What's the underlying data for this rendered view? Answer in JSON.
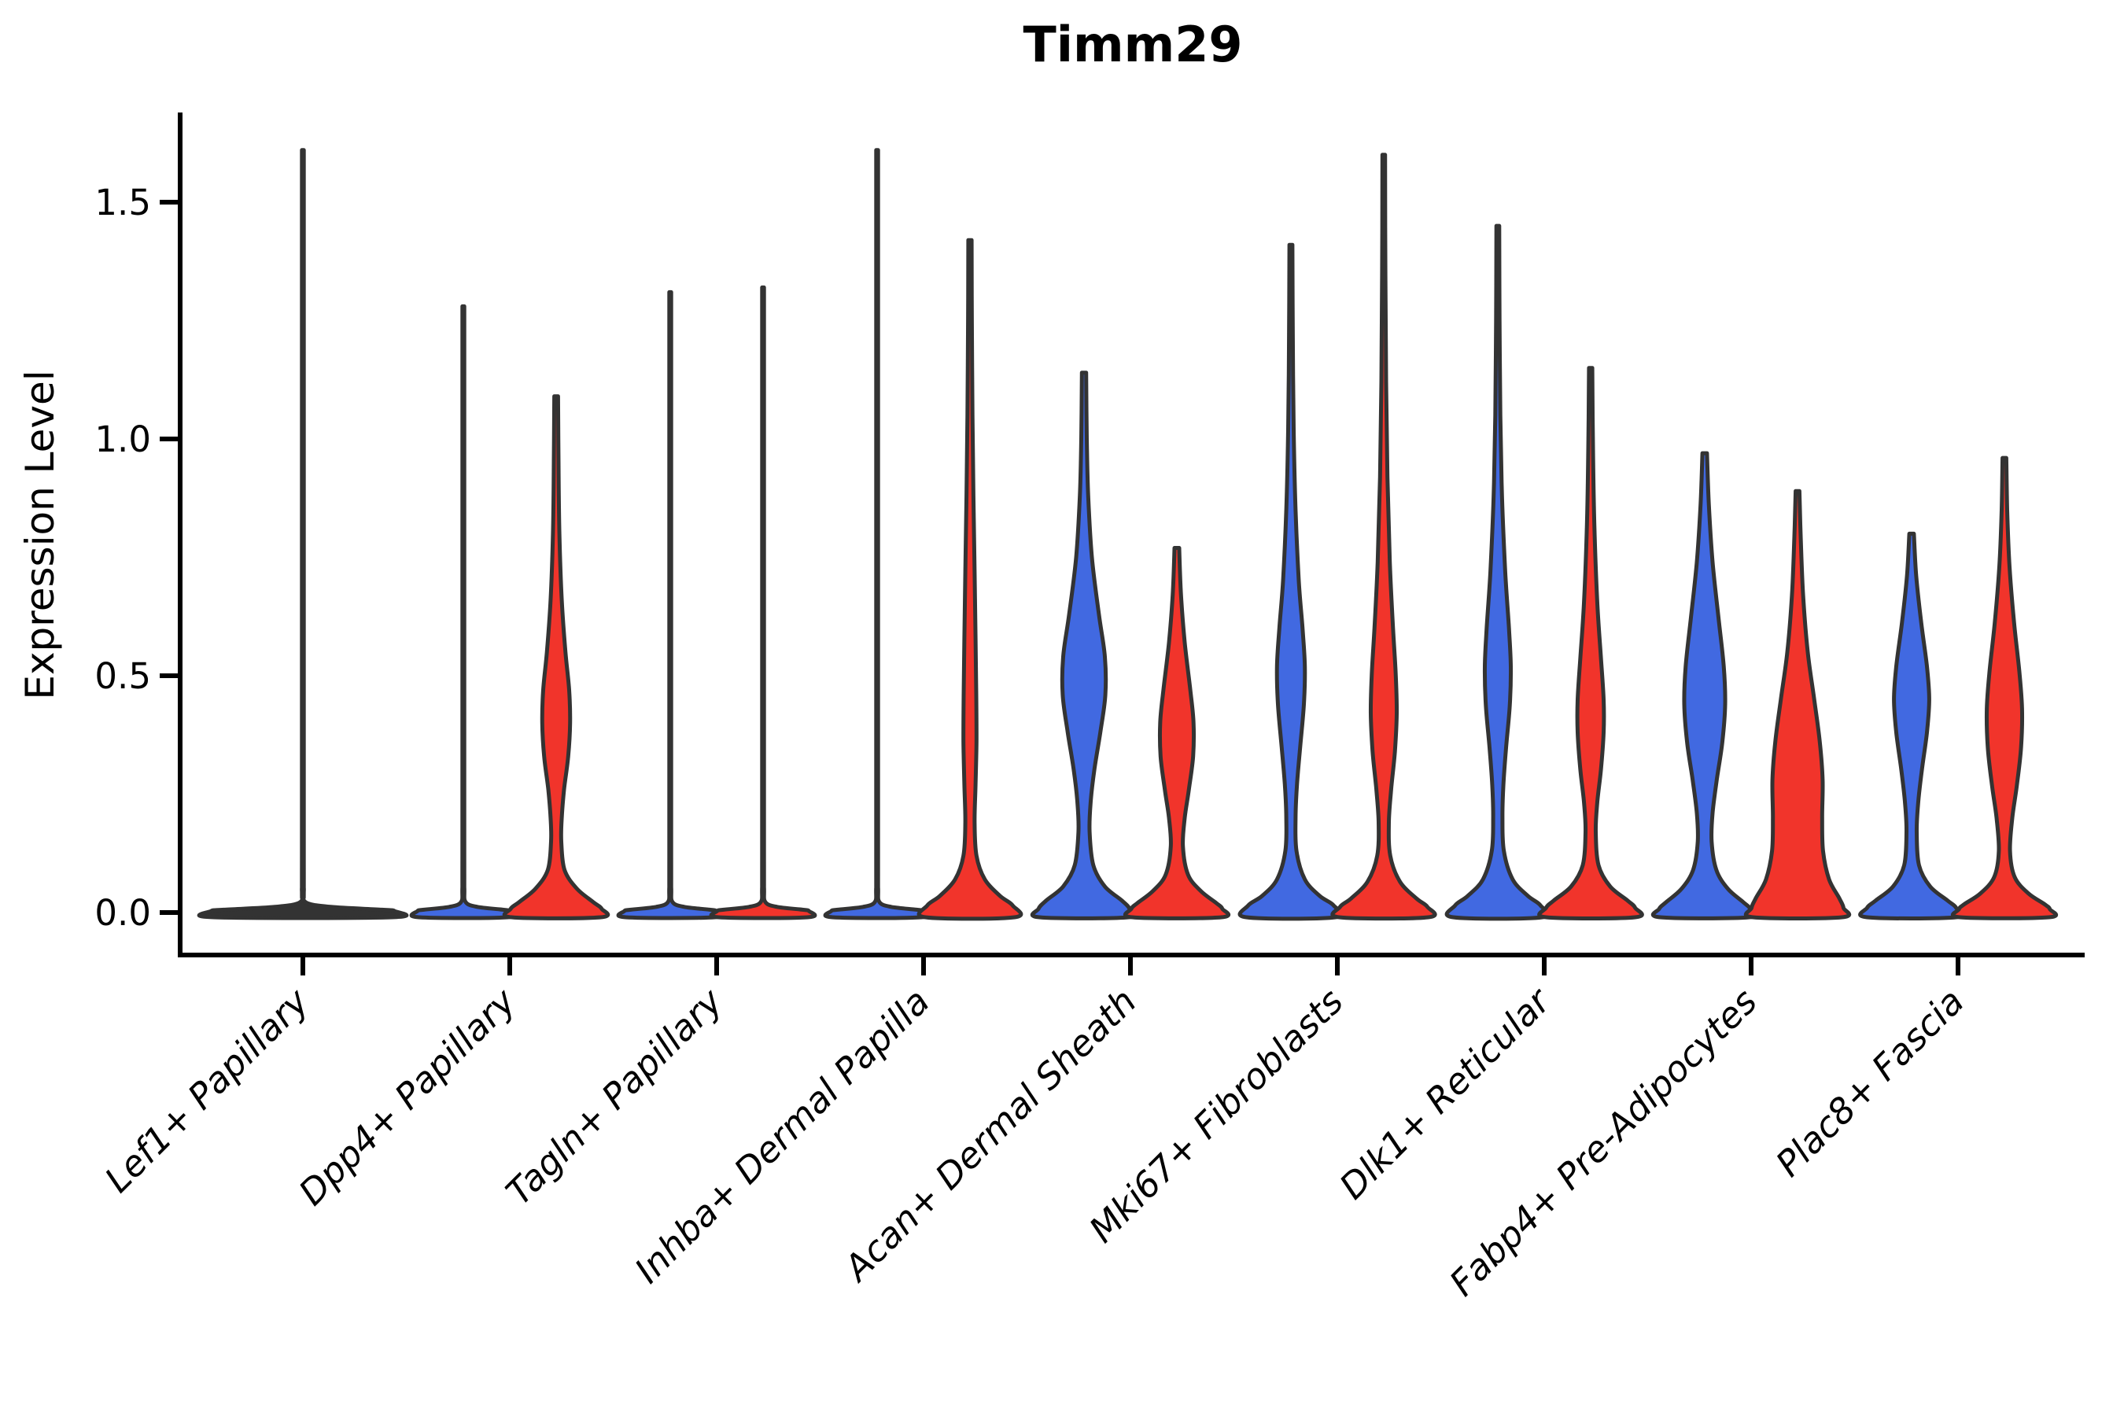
{
  "title": "Timm29",
  "y_axis": {
    "label": "Expression Level",
    "tick_labels": [
      "0.0",
      "0.5",
      "1.0",
      "1.5"
    ],
    "tick_values": [
      0.0,
      0.5,
      1.0,
      1.5
    ]
  },
  "x_axis": {
    "categories": [
      "Lef1+ Papillary",
      "Dpp4+ Papillary",
      "Tagln+ Papillary",
      "Inhba+ Dermal Papilla",
      "Acan+ Dermal Sheath",
      "Mki67+ Fibroblasts",
      "Dlk1+ Reticular",
      "Fabp4+ Pre-Adipocytes",
      "Plac8+ Fascia"
    ]
  },
  "colors": {
    "blue": "#4169E1",
    "red": "#F1342B",
    "dark": "#333333",
    "outline": "#333333",
    "axis": "#000000"
  },
  "chart_data": {
    "type": "violin",
    "title": "Timm29",
    "xlabel": "",
    "ylabel": "Expression Level",
    "ylim": [
      -0.05,
      1.69
    ],
    "grid": false,
    "legend": "none",
    "categories": [
      "Lef1+ Papillary",
      "Dpp4+ Papillary",
      "Tagln+ Papillary",
      "Inhba+ Dermal Papilla",
      "Acan+ Dermal Sheath",
      "Mki67+ Fibroblasts",
      "Dlk1+ Reticular",
      "Fabp4+ Pre-Adipocytes",
      "Plac8+ Fascia"
    ],
    "series": [
      {
        "name": "group-blue",
        "color_key": "blue",
        "max_expression": [
          1.61,
          1.28,
          1.31,
          1.61,
          1.14,
          1.41,
          1.45,
          0.97,
          0.8
        ]
      },
      {
        "name": "group-red",
        "color_key": "red",
        "max_expression": [
          null,
          1.09,
          1.32,
          1.42,
          0.77,
          1.6,
          1.15,
          0.89,
          0.96
        ]
      }
    ],
    "violins": [
      {
        "category_index": 0,
        "slot": "full",
        "color_key": "dark",
        "max_expression": 1.61,
        "profile": [
          [
            1.61,
            0.01
          ],
          [
            1.0,
            0.01
          ],
          [
            0.12,
            0.0105
          ],
          [
            0.05,
            0.011
          ],
          [
            0.022,
            0.03
          ],
          [
            0.012,
            0.3
          ],
          [
            0.006,
            0.85
          ],
          [
            0.003,
            0.99
          ],
          [
            -0.01,
            0.96
          ]
        ]
      },
      {
        "category_index": 1,
        "slot": "left",
        "color_key": "blue",
        "max_expression": 1.28,
        "profile": [
          [
            1.28,
            0.02
          ],
          [
            0.77,
            0.02
          ],
          [
            0.12,
            0.021
          ],
          [
            0.05,
            0.022
          ],
          [
            0.022,
            0.05
          ],
          [
            0.012,
            0.3
          ],
          [
            0.006,
            0.85
          ],
          [
            0.003,
            0.99
          ],
          [
            -0.01,
            0.96
          ]
        ]
      },
      {
        "category_index": 1,
        "slot": "right",
        "color_key": "red",
        "max_expression": 1.09,
        "profile": [
          [
            1.09,
            0.04
          ],
          [
            0.95,
            0.05
          ],
          [
            0.8,
            0.07
          ],
          [
            0.66,
            0.12
          ],
          [
            0.55,
            0.2
          ],
          [
            0.47,
            0.28
          ],
          [
            0.4,
            0.3
          ],
          [
            0.33,
            0.26
          ],
          [
            0.26,
            0.17
          ],
          [
            0.2,
            0.12
          ],
          [
            0.15,
            0.11
          ],
          [
            0.09,
            0.18
          ],
          [
            0.05,
            0.45
          ],
          [
            0.022,
            0.8
          ],
          [
            0.008,
            0.98
          ],
          [
            -0.01,
            0.96
          ]
        ]
      },
      {
        "category_index": 2,
        "slot": "left",
        "color_key": "blue",
        "max_expression": 1.31,
        "profile": [
          [
            1.31,
            0.02
          ],
          [
            0.79,
            0.02
          ],
          [
            0.12,
            0.021
          ],
          [
            0.05,
            0.022
          ],
          [
            0.022,
            0.05
          ],
          [
            0.012,
            0.3
          ],
          [
            0.006,
            0.85
          ],
          [
            0.003,
            0.99
          ],
          [
            -0.01,
            0.96
          ]
        ]
      },
      {
        "category_index": 2,
        "slot": "right",
        "color_key": "red",
        "max_expression": 1.32,
        "profile": [
          [
            1.32,
            0.02
          ],
          [
            0.79,
            0.02
          ],
          [
            0.12,
            0.021
          ],
          [
            0.05,
            0.022
          ],
          [
            0.022,
            0.05
          ],
          [
            0.012,
            0.3
          ],
          [
            0.006,
            0.85
          ],
          [
            0.003,
            0.99
          ],
          [
            -0.01,
            0.96
          ]
        ]
      },
      {
        "category_index": 3,
        "slot": "left",
        "color_key": "blue",
        "max_expression": 1.61,
        "profile": [
          [
            1.61,
            0.02
          ],
          [
            0.97,
            0.02
          ],
          [
            0.12,
            0.021
          ],
          [
            0.05,
            0.022
          ],
          [
            0.022,
            0.05
          ],
          [
            0.012,
            0.3
          ],
          [
            0.006,
            0.85
          ],
          [
            0.003,
            0.99
          ],
          [
            -0.01,
            0.96
          ]
        ]
      },
      {
        "category_index": 3,
        "slot": "right",
        "color_key": "red",
        "max_expression": 1.42,
        "profile": [
          [
            1.42,
            0.035
          ],
          [
            1.25,
            0.04
          ],
          [
            1.05,
            0.055
          ],
          [
            0.88,
            0.075
          ],
          [
            0.72,
            0.1
          ],
          [
            0.58,
            0.12
          ],
          [
            0.46,
            0.135
          ],
          [
            0.36,
            0.14
          ],
          [
            0.27,
            0.12
          ],
          [
            0.19,
            0.1
          ],
          [
            0.12,
            0.14
          ],
          [
            0.07,
            0.32
          ],
          [
            0.035,
            0.65
          ],
          [
            0.015,
            0.92
          ],
          [
            -0.01,
            0.96
          ]
        ]
      },
      {
        "category_index": 4,
        "slot": "left",
        "color_key": "blue",
        "max_expression": 1.14,
        "profile": [
          [
            1.14,
            0.045
          ],
          [
            1.0,
            0.06
          ],
          [
            0.88,
            0.09
          ],
          [
            0.75,
            0.17
          ],
          [
            0.63,
            0.32
          ],
          [
            0.54,
            0.45
          ],
          [
            0.46,
            0.46
          ],
          [
            0.38,
            0.35
          ],
          [
            0.3,
            0.22
          ],
          [
            0.23,
            0.14
          ],
          [
            0.17,
            0.12
          ],
          [
            0.1,
            0.2
          ],
          [
            0.055,
            0.45
          ],
          [
            0.025,
            0.82
          ],
          [
            0.008,
            0.98
          ],
          [
            -0.01,
            0.96
          ]
        ]
      },
      {
        "category_index": 4,
        "slot": "right",
        "color_key": "red",
        "max_expression": 0.77,
        "profile": [
          [
            0.77,
            0.05
          ],
          [
            0.67,
            0.09
          ],
          [
            0.57,
            0.17
          ],
          [
            0.47,
            0.29
          ],
          [
            0.4,
            0.36
          ],
          [
            0.33,
            0.35
          ],
          [
            0.26,
            0.26
          ],
          [
            0.2,
            0.17
          ],
          [
            0.14,
            0.13
          ],
          [
            0.08,
            0.24
          ],
          [
            0.045,
            0.52
          ],
          [
            0.02,
            0.85
          ],
          [
            0.008,
            0.98
          ],
          [
            -0.01,
            0.96
          ]
        ]
      },
      {
        "category_index": 5,
        "slot": "left",
        "color_key": "blue",
        "max_expression": 1.41,
        "profile": [
          [
            1.41,
            0.032
          ],
          [
            1.22,
            0.04
          ],
          [
            1.02,
            0.06
          ],
          [
            0.85,
            0.1
          ],
          [
            0.7,
            0.17
          ],
          [
            0.6,
            0.25
          ],
          [
            0.52,
            0.3
          ],
          [
            0.44,
            0.28
          ],
          [
            0.35,
            0.2
          ],
          [
            0.27,
            0.13
          ],
          [
            0.2,
            0.1
          ],
          [
            0.13,
            0.12
          ],
          [
            0.07,
            0.3
          ],
          [
            0.035,
            0.62
          ],
          [
            0.015,
            0.92
          ],
          [
            -0.01,
            0.96
          ]
        ]
      },
      {
        "category_index": 5,
        "slot": "right",
        "color_key": "red",
        "max_expression": 1.6,
        "profile": [
          [
            1.6,
            0.028
          ],
          [
            1.35,
            0.035
          ],
          [
            1.12,
            0.05
          ],
          [
            0.92,
            0.08
          ],
          [
            0.74,
            0.13
          ],
          [
            0.6,
            0.2
          ],
          [
            0.5,
            0.26
          ],
          [
            0.42,
            0.28
          ],
          [
            0.34,
            0.24
          ],
          [
            0.26,
            0.16
          ],
          [
            0.19,
            0.11
          ],
          [
            0.12,
            0.14
          ],
          [
            0.065,
            0.35
          ],
          [
            0.03,
            0.7
          ],
          [
            0.012,
            0.94
          ],
          [
            -0.01,
            0.96
          ]
        ]
      },
      {
        "category_index": 6,
        "slot": "left",
        "color_key": "blue",
        "max_expression": 1.45,
        "profile": [
          [
            1.45,
            0.03
          ],
          [
            1.25,
            0.038
          ],
          [
            1.05,
            0.055
          ],
          [
            0.88,
            0.09
          ],
          [
            0.72,
            0.16
          ],
          [
            0.6,
            0.24
          ],
          [
            0.52,
            0.28
          ],
          [
            0.44,
            0.26
          ],
          [
            0.35,
            0.18
          ],
          [
            0.27,
            0.12
          ],
          [
            0.2,
            0.1
          ],
          [
            0.13,
            0.13
          ],
          [
            0.07,
            0.32
          ],
          [
            0.035,
            0.65
          ],
          [
            0.015,
            0.92
          ],
          [
            -0.01,
            0.96
          ]
        ]
      },
      {
        "category_index": 6,
        "slot": "right",
        "color_key": "red",
        "max_expression": 1.15,
        "profile": [
          [
            1.15,
            0.035
          ],
          [
            0.98,
            0.05
          ],
          [
            0.82,
            0.08
          ],
          [
            0.66,
            0.14
          ],
          [
            0.54,
            0.22
          ],
          [
            0.45,
            0.28
          ],
          [
            0.38,
            0.28
          ],
          [
            0.3,
            0.22
          ],
          [
            0.23,
            0.14
          ],
          [
            0.17,
            0.11
          ],
          [
            0.1,
            0.17
          ],
          [
            0.055,
            0.42
          ],
          [
            0.025,
            0.8
          ],
          [
            0.01,
            0.96
          ],
          [
            -0.01,
            0.96
          ]
        ]
      },
      {
        "category_index": 7,
        "slot": "left",
        "color_key": "blue",
        "max_expression": 0.97,
        "profile": [
          [
            0.97,
            0.05
          ],
          [
            0.86,
            0.09
          ],
          [
            0.74,
            0.17
          ],
          [
            0.62,
            0.3
          ],
          [
            0.52,
            0.41
          ],
          [
            0.44,
            0.44
          ],
          [
            0.36,
            0.38
          ],
          [
            0.28,
            0.26
          ],
          [
            0.21,
            0.17
          ],
          [
            0.15,
            0.15
          ],
          [
            0.09,
            0.25
          ],
          [
            0.05,
            0.5
          ],
          [
            0.022,
            0.83
          ],
          [
            0.008,
            0.98
          ],
          [
            -0.01,
            0.96
          ]
        ]
      },
      {
        "category_index": 7,
        "slot": "right",
        "color_key": "red",
        "max_expression": 0.89,
        "profile": [
          [
            0.89,
            0.04
          ],
          [
            0.79,
            0.07
          ],
          [
            0.67,
            0.12
          ],
          [
            0.55,
            0.22
          ],
          [
            0.45,
            0.36
          ],
          [
            0.36,
            0.48
          ],
          [
            0.28,
            0.54
          ],
          [
            0.2,
            0.53
          ],
          [
            0.13,
            0.55
          ],
          [
            0.07,
            0.68
          ],
          [
            0.03,
            0.9
          ],
          [
            0.01,
            0.99
          ],
          [
            -0.01,
            0.96
          ]
        ]
      },
      {
        "category_index": 8,
        "slot": "left",
        "color_key": "blue",
        "max_expression": 0.8,
        "profile": [
          [
            0.8,
            0.05
          ],
          [
            0.71,
            0.1
          ],
          [
            0.61,
            0.21
          ],
          [
            0.52,
            0.33
          ],
          [
            0.45,
            0.38
          ],
          [
            0.38,
            0.33
          ],
          [
            0.3,
            0.22
          ],
          [
            0.23,
            0.14
          ],
          [
            0.17,
            0.11
          ],
          [
            0.1,
            0.16
          ],
          [
            0.055,
            0.4
          ],
          [
            0.025,
            0.78
          ],
          [
            0.01,
            0.96
          ],
          [
            -0.01,
            0.96
          ]
        ]
      },
      {
        "category_index": 8,
        "slot": "right",
        "color_key": "red",
        "max_expression": 0.96,
        "profile": [
          [
            0.96,
            0.04
          ],
          [
            0.85,
            0.06
          ],
          [
            0.73,
            0.11
          ],
          [
            0.61,
            0.21
          ],
          [
            0.51,
            0.32
          ],
          [
            0.43,
            0.38
          ],
          [
            0.35,
            0.36
          ],
          [
            0.27,
            0.27
          ],
          [
            0.2,
            0.17
          ],
          [
            0.13,
            0.12
          ],
          [
            0.075,
            0.22
          ],
          [
            0.04,
            0.52
          ],
          [
            0.018,
            0.86
          ],
          [
            0.007,
            0.98
          ],
          [
            -0.01,
            0.96
          ]
        ]
      }
    ]
  }
}
